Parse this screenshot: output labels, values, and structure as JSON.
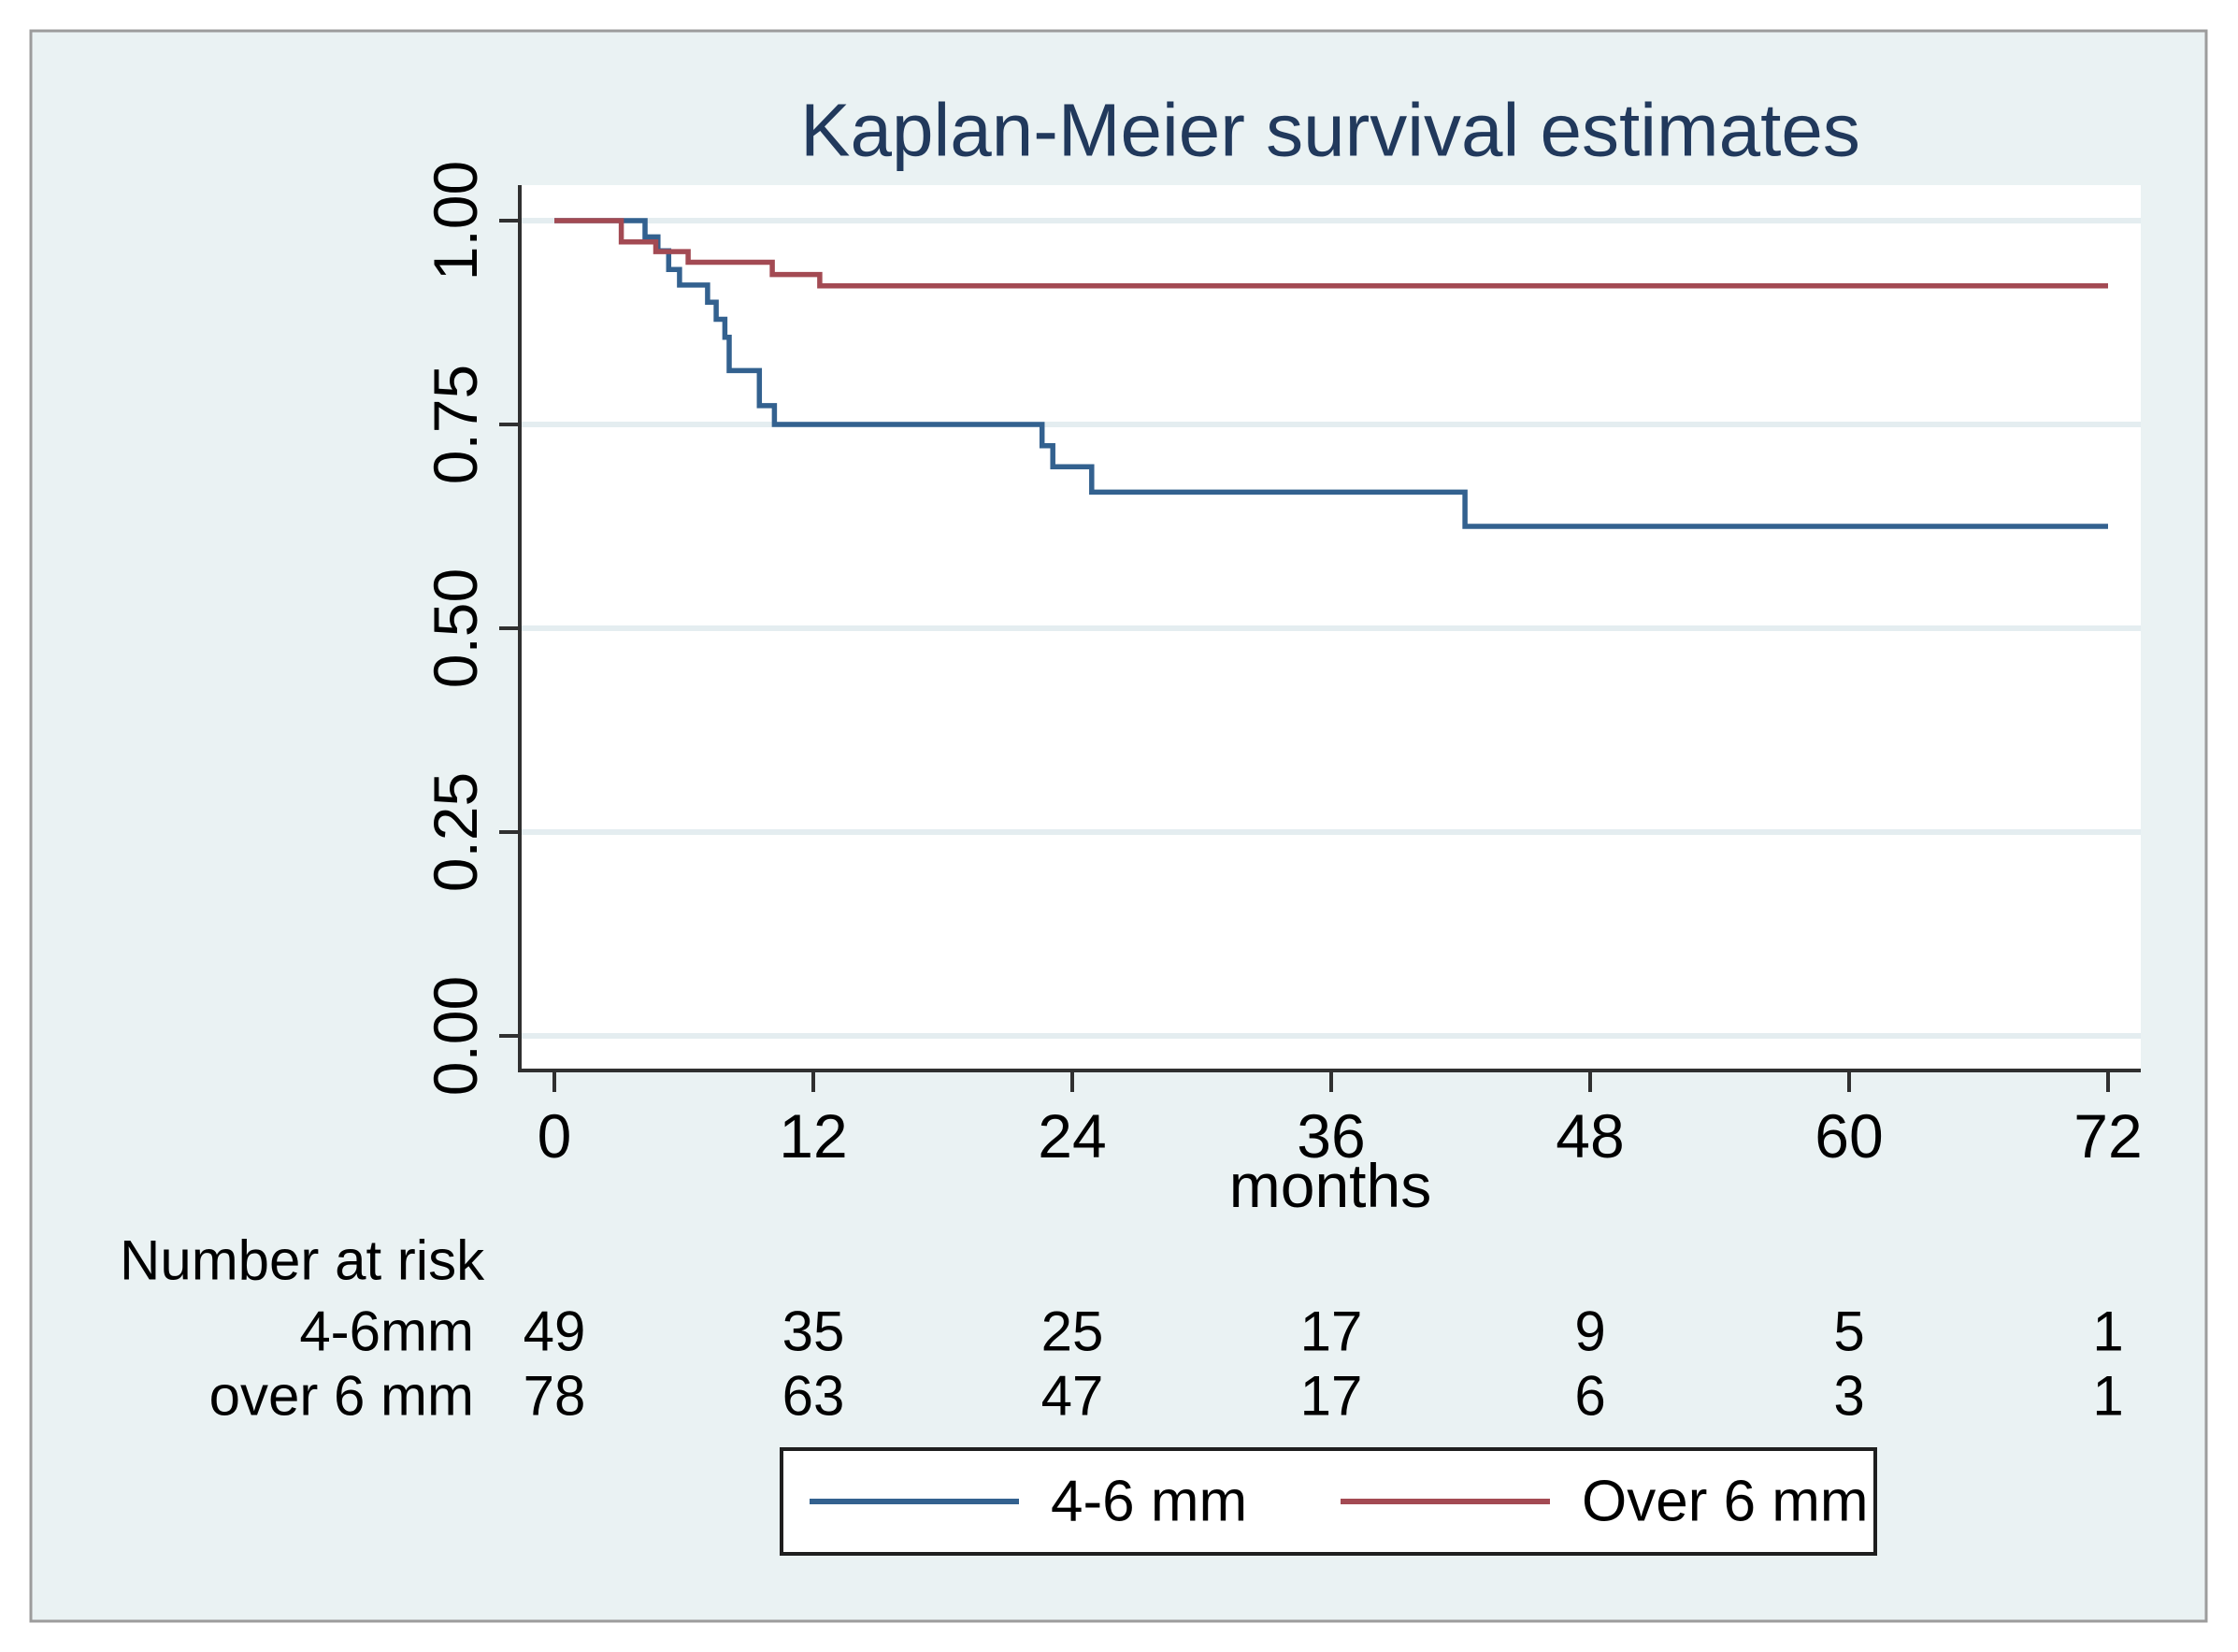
{
  "figure": {
    "background": "#ffffff",
    "panel_background": "#eaf2f3",
    "panel_border": "#9c9c9c",
    "plot_background": "#ffffff",
    "grid_color": "#e4edf0",
    "axis_color": "#303030",
    "text_color": "#000000",
    "title_color": "#21395c"
  },
  "chart_data": {
    "type": "line",
    "variant": "kaplan-meier-step",
    "title": "Kaplan-Meier survival estimates",
    "xlabel": "months",
    "ylabel": "",
    "xlim": [
      0,
      72
    ],
    "ylim": [
      0.0,
      1.0
    ],
    "x_ticks": [
      0,
      12,
      24,
      36,
      48,
      60,
      72
    ],
    "y_ticks": [
      {
        "value": 1.0,
        "label": "1.00"
      },
      {
        "value": 0.75,
        "label": "0.75"
      },
      {
        "value": 0.5,
        "label": "0.50"
      },
      {
        "value": 0.25,
        "label": "0.25"
      },
      {
        "value": 0.0,
        "label": "0.00"
      }
    ],
    "grid": "horizontal",
    "legend_position": "bottom-center",
    "series": [
      {
        "name": "4-6 mm",
        "color": "#33618f",
        "steps": [
          [
            0,
            1.0
          ],
          [
            4.2,
            0.98
          ],
          [
            4.8,
            0.963
          ],
          [
            5.3,
            0.94
          ],
          [
            5.8,
            0.921
          ],
          [
            7.1,
            0.9
          ],
          [
            7.5,
            0.879
          ],
          [
            7.9,
            0.857
          ],
          [
            8.1,
            0.816
          ],
          [
            9.5,
            0.773
          ],
          [
            10.2,
            0.75
          ],
          [
            22.6,
            0.724
          ],
          [
            23.1,
            0.698
          ],
          [
            24.9,
            0.667
          ],
          [
            42.2,
            0.625
          ],
          [
            72,
            0.625
          ]
        ]
      },
      {
        "name": "Over 6 mm",
        "color": "#a34a53",
        "steps": [
          [
            0,
            1.0
          ],
          [
            3.1,
            0.974
          ],
          [
            4.7,
            0.962
          ],
          [
            6.2,
            0.949
          ],
          [
            10.1,
            0.934
          ],
          [
            12.3,
            0.92
          ],
          [
            72,
            0.92
          ]
        ]
      }
    ],
    "risk_table": {
      "title": "Number at risk",
      "time_points": [
        0,
        12,
        24,
        36,
        48,
        60,
        72
      ],
      "rows": [
        {
          "label": "4-6mm",
          "counts": [
            49,
            35,
            25,
            17,
            9,
            5,
            1
          ]
        },
        {
          "label": "over 6 mm",
          "counts": [
            78,
            63,
            47,
            17,
            6,
            3,
            1
          ]
        }
      ]
    }
  }
}
